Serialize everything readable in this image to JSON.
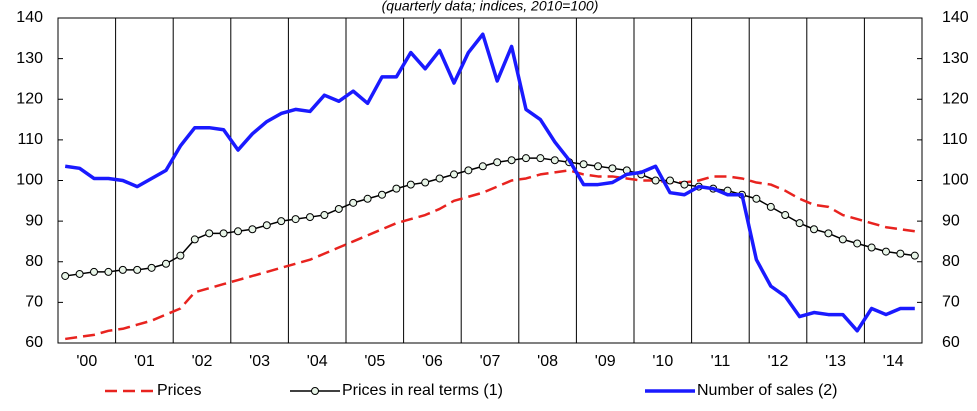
{
  "chart_data": {
    "type": "line",
    "subtitle": "(quarterly data; indices, 2010=100)",
    "x": [
      2000.125,
      2000.375,
      2000.625,
      2000.875,
      2001.125,
      2001.375,
      2001.625,
      2001.875,
      2002.125,
      2002.375,
      2002.625,
      2002.875,
      2003.125,
      2003.375,
      2003.625,
      2003.875,
      2004.125,
      2004.375,
      2004.625,
      2004.875,
      2005.125,
      2005.375,
      2005.625,
      2005.875,
      2006.125,
      2006.375,
      2006.625,
      2006.875,
      2007.125,
      2007.375,
      2007.625,
      2007.875,
      2008.125,
      2008.375,
      2008.625,
      2008.875,
      2009.125,
      2009.375,
      2009.625,
      2009.875,
      2010.125,
      2010.375,
      2010.625,
      2010.875,
      2011.125,
      2011.375,
      2011.625,
      2011.875,
      2012.125,
      2012.375,
      2012.625,
      2012.875,
      2013.125,
      2013.375,
      2013.625,
      2013.875,
      2014.125,
      2014.375,
      2014.625,
      2014.875
    ],
    "xlim": [
      2000,
      2015
    ],
    "xticks": [
      {
        "value": 2000.5,
        "label": "'00"
      },
      {
        "value": 2001.5,
        "label": "'01"
      },
      {
        "value": 2002.5,
        "label": "'02"
      },
      {
        "value": 2003.5,
        "label": "'03"
      },
      {
        "value": 2004.5,
        "label": "'04"
      },
      {
        "value": 2005.5,
        "label": "'05"
      },
      {
        "value": 2006.5,
        "label": "'06"
      },
      {
        "value": 2007.5,
        "label": "'07"
      },
      {
        "value": 2008.5,
        "label": "'08"
      },
      {
        "value": 2009.5,
        "label": "'09"
      },
      {
        "value": 2010.5,
        "label": "'10"
      },
      {
        "value": 2011.5,
        "label": "'11"
      },
      {
        "value": 2012.5,
        "label": "'12"
      },
      {
        "value": 2013.5,
        "label": "'13"
      },
      {
        "value": 2014.5,
        "label": "'14"
      }
    ],
    "ylim": [
      60,
      140
    ],
    "yticks": [
      60,
      70,
      80,
      90,
      100,
      110,
      120,
      130,
      140
    ],
    "y2lim": [
      60,
      140
    ],
    "y2ticks": [
      60,
      70,
      80,
      90,
      100,
      110,
      120,
      130,
      140
    ],
    "year_grid": true,
    "series": [
      {
        "name": "Prices",
        "color": "#e8231f",
        "dash": true,
        "marker": false,
        "values": [
          61,
          61.5,
          62,
          63,
          63.5,
          64.5,
          65.5,
          67,
          68.5,
          72.5,
          73.5,
          74.5,
          75.5,
          76.5,
          77.5,
          78.5,
          79.5,
          80.5,
          82,
          83.5,
          85,
          86.5,
          88,
          89.5,
          90.5,
          91.5,
          93,
          95,
          96,
          97,
          98.5,
          100,
          100.5,
          101.5,
          102,
          102.5,
          101.5,
          101,
          101,
          100.5,
          100,
          100,
          99.5,
          99.5,
          100,
          101,
          101,
          100.5,
          99.5,
          99,
          97.5,
          95.5,
          94,
          93.5,
          91.5,
          90.5,
          89.5,
          88.5,
          88,
          87.5
        ]
      },
      {
        "name": "Prices in real terms (1)",
        "color": "#000000",
        "dash": false,
        "marker": true,
        "values": [
          76.5,
          77,
          77.5,
          77.5,
          78,
          78,
          78.5,
          79.5,
          81.5,
          85.5,
          87,
          87,
          87.5,
          88,
          89,
          90,
          90.5,
          91,
          91.5,
          93,
          94.5,
          95.5,
          96.5,
          98,
          99,
          99.5,
          100.5,
          101.5,
          102.5,
          103.5,
          104.5,
          105,
          105.5,
          105.5,
          105,
          104.5,
          104,
          103.5,
          103,
          102.5,
          101.5,
          100,
          100,
          99,
          98.5,
          98,
          97.5,
          96.5,
          95.5,
          93.5,
          91.5,
          89.5,
          88,
          87,
          85.5,
          84.5,
          83.5,
          82.5,
          82,
          81.5
        ]
      },
      {
        "name": "Number of sales (2)",
        "color": "#1a1aff",
        "dash": false,
        "marker": false,
        "values": [
          103.5,
          103,
          100.5,
          100.5,
          100,
          98.5,
          100.5,
          102.5,
          108.5,
          113,
          113,
          112.5,
          107.5,
          111.5,
          114.5,
          116.5,
          117.5,
          117,
          121,
          119.5,
          122,
          119,
          125.5,
          125.5,
          131.5,
          127.5,
          132,
          124,
          131.5,
          136,
          124.5,
          133,
          117.5,
          115,
          109.5,
          105,
          99,
          99,
          99.5,
          101.5,
          102,
          103.5,
          97,
          96.5,
          98.5,
          98,
          96.5,
          96.5,
          80.5,
          74,
          71.5,
          66.5,
          67.5,
          67,
          67,
          63,
          68.5,
          67,
          68.5,
          68.5
        ]
      }
    ]
  }
}
